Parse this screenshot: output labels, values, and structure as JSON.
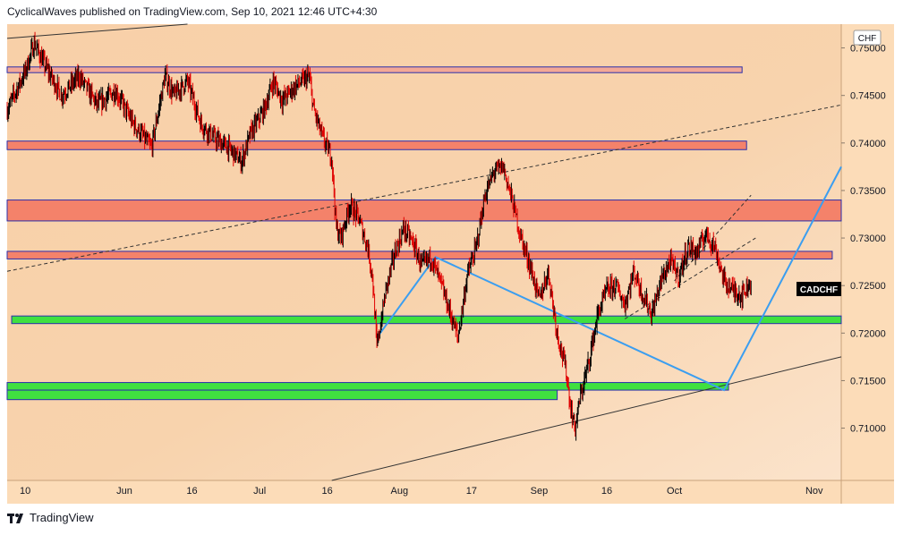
{
  "header": {
    "published_text": "CyclicalWaves published on TradingView.com, Sep 10, 2021 12:46 UTC+4:30"
  },
  "footer": {
    "brand": "TradingView",
    "logo_icon": "tradingview-logo-icon"
  },
  "colors": {
    "chart_bg": "#f8d2ac",
    "chart_bg_light": "#fbe0c5",
    "axis_bg": "#fcdcb8",
    "candle": "#131722",
    "candle_up": "#000000",
    "candle_down": "#e00000",
    "zone_red": "#f4826a",
    "zone_pink": "#f3a896",
    "zone_green": "#40e040",
    "zone_border": "#2a2eab",
    "projection_line": "#3b9ef0",
    "trend_line": "#333333",
    "price_tag_bg": "#000000",
    "price_tag_text": "#ffffff"
  },
  "chart_data": {
    "type": "candlestick",
    "symbol": "CADCHF",
    "currency": "CHF",
    "y_axis": {
      "ticks": [
        0.71,
        0.715,
        0.72,
        0.725,
        0.73,
        0.735,
        0.74,
        0.745,
        0.75
      ],
      "tick_labels": [
        "0.71000",
        "0.71500",
        "0.72000",
        "0.72500",
        "0.73000",
        "0.73500",
        "0.74000",
        "0.74500",
        "0.75000"
      ],
      "range": [
        0.7045,
        0.7525
      ]
    },
    "x_axis": {
      "start": "2021-05-06",
      "end": "2021-11-07",
      "tick_dates": [
        "2021-05-10",
        "2021-06-01",
        "2021-06-16",
        "2021-07-01",
        "2021-07-16",
        "2021-08-01",
        "2021-08-17",
        "2021-09-01",
        "2021-09-16",
        "2021-10-01",
        "2021-11-01"
      ],
      "tick_labels": [
        "10",
        "Jun",
        "16",
        "Jul",
        "16",
        "Aug",
        "17",
        "Sep",
        "16",
        "Oct",
        "Nov"
      ]
    },
    "last_price_label": "CADCHF",
    "price_path": [
      [
        "2021-05-06",
        0.7435
      ],
      [
        "2021-05-08",
        0.7455
      ],
      [
        "2021-05-10",
        0.7475
      ],
      [
        "2021-05-12",
        0.7505
      ],
      [
        "2021-05-14",
        0.7485
      ],
      [
        "2021-05-18",
        0.745
      ],
      [
        "2021-05-22",
        0.747
      ],
      [
        "2021-05-26",
        0.744
      ],
      [
        "2021-05-30",
        0.7455
      ],
      [
        "2021-06-03",
        0.742
      ],
      [
        "2021-06-07",
        0.7395
      ],
      [
        "2021-06-10",
        0.747
      ],
      [
        "2021-06-12",
        0.745
      ],
      [
        "2021-06-15",
        0.7465
      ],
      [
        "2021-06-18",
        0.742
      ],
      [
        "2021-06-21",
        0.7405
      ],
      [
        "2021-06-24",
        0.7395
      ],
      [
        "2021-06-27",
        0.738
      ],
      [
        "2021-06-29",
        0.741
      ],
      [
        "2021-07-02",
        0.7435
      ],
      [
        "2021-07-04",
        0.7465
      ],
      [
        "2021-07-06",
        0.7445
      ],
      [
        "2021-07-09",
        0.746
      ],
      [
        "2021-07-12",
        0.747
      ],
      [
        "2021-07-13",
        0.7435
      ],
      [
        "2021-07-15",
        0.7405
      ],
      [
        "2021-07-17",
        0.7385
      ],
      [
        "2021-07-18",
        0.731
      ],
      [
        "2021-07-19",
        0.73
      ],
      [
        "2021-07-21",
        0.7335
      ],
      [
        "2021-07-23",
        0.732
      ],
      [
        "2021-07-25",
        0.729
      ],
      [
        "2021-07-26",
        0.726
      ],
      [
        "2021-07-27",
        0.7185
      ],
      [
        "2021-07-29",
        0.7245
      ],
      [
        "2021-07-31",
        0.7285
      ],
      [
        "2021-08-02",
        0.731
      ],
      [
        "2021-08-04",
        0.7295
      ],
      [
        "2021-08-06",
        0.727
      ],
      [
        "2021-08-08",
        0.728
      ],
      [
        "2021-08-10",
        0.7255
      ],
      [
        "2021-08-12",
        0.7225
      ],
      [
        "2021-08-14",
        0.7195
      ],
      [
        "2021-08-16",
        0.726
      ],
      [
        "2021-08-18",
        0.729
      ],
      [
        "2021-08-20",
        0.7345
      ],
      [
        "2021-08-22",
        0.737
      ],
      [
        "2021-08-24",
        0.7375
      ],
      [
        "2021-08-26",
        0.734
      ],
      [
        "2021-08-28",
        0.73
      ],
      [
        "2021-08-30",
        0.727
      ],
      [
        "2021-09-01",
        0.7235
      ],
      [
        "2021-09-03",
        0.7265
      ],
      [
        "2021-09-05",
        0.72
      ],
      [
        "2021-09-07",
        0.716
      ],
      [
        "2021-09-08",
        0.712
      ],
      [
        "2021-09-09",
        0.71
      ],
      [
        "2021-09-10",
        0.713
      ],
      [
        "2021-09-12",
        0.717
      ],
      [
        "2021-09-14",
        0.722
      ],
      [
        "2021-09-16",
        0.7245
      ],
      [
        "2021-09-18",
        0.725
      ],
      [
        "2021-09-20",
        0.723
      ],
      [
        "2021-09-22",
        0.7265
      ],
      [
        "2021-09-24",
        0.724
      ],
      [
        "2021-09-26",
        0.722
      ],
      [
        "2021-09-28",
        0.7255
      ],
      [
        "2021-09-30",
        0.7275
      ],
      [
        "2021-10-02",
        0.726
      ],
      [
        "2021-10-04",
        0.729
      ],
      [
        "2021-10-06",
        0.7285
      ],
      [
        "2021-10-08",
        0.7305
      ],
      [
        "2021-10-10",
        0.729
      ],
      [
        "2021-10-12",
        0.7255
      ],
      [
        "2021-10-14",
        0.7245
      ],
      [
        "2021-10-16",
        0.724
      ],
      [
        "2021-10-18",
        0.7255
      ]
    ],
    "zones": [
      {
        "name": "resistance-top",
        "y1": 0.748,
        "y2": 0.7474,
        "x1": "2021-05-06",
        "x2": "2021-10-16",
        "color": "zone_pink"
      },
      {
        "name": "resistance-0740",
        "y1": 0.7402,
        "y2": 0.7393,
        "x1": "2021-05-06",
        "x2": "2021-10-17",
        "color": "zone_red"
      },
      {
        "name": "resistance-0733",
        "y1": 0.734,
        "y2": 0.7318,
        "x1": "2021-05-06",
        "x2": "2021-11-07",
        "color": "zone_red"
      },
      {
        "name": "resistance-0728",
        "y1": 0.7286,
        "y2": 0.7278,
        "x1": "2021-05-06",
        "x2": "2021-11-05",
        "color": "zone_red"
      },
      {
        "name": "support-0722",
        "y1": 0.7218,
        "y2": 0.721,
        "x1": "2021-05-07",
        "x2": "2021-11-07",
        "color": "zone_green"
      },
      {
        "name": "support-0715a",
        "y1": 0.7148,
        "y2": 0.714,
        "x1": "2021-05-06",
        "x2": "2021-10-13",
        "color": "zone_green"
      },
      {
        "name": "support-0715b",
        "y1": 0.714,
        "y2": 0.713,
        "x1": "2021-05-06",
        "x2": "2021-09-05",
        "color": "zone_green"
      }
    ],
    "lines": [
      {
        "name": "upper-channel-line",
        "style": "solid",
        "color": "trend_line",
        "points": [
          [
            "2021-05-06",
            0.751
          ],
          [
            "2021-06-15",
            0.7525
          ]
        ]
      },
      {
        "name": "dashed-trend-line",
        "style": "dashed",
        "color": "trend_line",
        "points": [
          [
            "2021-05-06",
            0.7265
          ],
          [
            "2021-11-07",
            0.744
          ]
        ]
      },
      {
        "name": "lower-channel-line",
        "style": "solid",
        "color": "trend_line",
        "points": [
          [
            "2021-07-17",
            0.7045
          ],
          [
            "2021-11-07",
            0.7175
          ]
        ]
      },
      {
        "name": "wedge-upper-dashed",
        "style": "dashed",
        "color": "trend_line",
        "points": [
          [
            "2021-09-20",
            0.7215
          ],
          [
            "2021-10-19",
            0.73
          ]
        ]
      },
      {
        "name": "wedge-lower-dashed",
        "style": "dashed",
        "color": "trend_line",
        "points": [
          [
            "2021-10-01",
            0.7255
          ],
          [
            "2021-10-18",
            0.7345
          ]
        ]
      },
      {
        "name": "projection-path",
        "style": "solid",
        "color": "projection_line",
        "points": [
          [
            "2021-07-27",
            0.7195
          ],
          [
            "2021-08-09",
            0.728
          ],
          [
            "2021-10-12",
            0.714
          ],
          [
            "2021-11-07",
            0.7375
          ]
        ]
      }
    ]
  }
}
